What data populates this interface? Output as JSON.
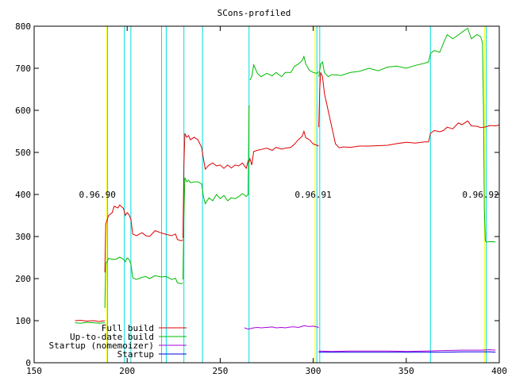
{
  "chart_data": {
    "type": "line",
    "title": "SCons-profiled",
    "xlim": [
      150,
      400
    ],
    "ylim": [
      0,
      800
    ],
    "x_ticks": [
      150,
      200,
      250,
      300,
      350,
      400
    ],
    "y_ticks": [
      0,
      100,
      200,
      300,
      400,
      500,
      600,
      700,
      800
    ],
    "grid": false,
    "legend_position": "bottom-left",
    "colors": {
      "release_marker": "#ffff00",
      "commit_marker": "#00dddd"
    },
    "version_labels": [
      {
        "text": "0.96.90",
        "x": 184,
        "y": 400
      },
      {
        "text": "0.96.91",
        "x": 300,
        "y": 400
      },
      {
        "text": "0.96.92",
        "x": 390,
        "y": 400
      }
    ],
    "release_markers_x": [
      189,
      301,
      392
    ],
    "commit_markers_x": [
      189.5,
      198.5,
      202,
      218.5,
      221,
      230.5,
      240.5,
      265.5,
      302,
      303.5,
      363,
      393
    ],
    "series": [
      {
        "name": "Full build",
        "color": "#dd0000",
        "segments": [
          [
            [
              172,
              100
            ],
            [
              175,
              101
            ],
            [
              178,
              99
            ],
            [
              182,
              100
            ],
            [
              185,
              98
            ],
            [
              188,
              100
            ]
          ],
          [
            [
              188,
              215
            ],
            [
              188.5,
              330
            ],
            [
              190,
              350
            ],
            [
              192,
              357
            ],
            [
              193,
              372
            ],
            [
              195,
              368
            ],
            [
              196,
              375
            ],
            [
              198,
              367
            ],
            [
              199,
              350
            ],
            [
              200,
              357
            ],
            [
              201,
              352
            ],
            [
              202,
              341
            ],
            [
              203,
              306
            ],
            [
              205,
              302
            ],
            [
              208,
              309
            ],
            [
              210,
              302
            ],
            [
              212,
              300
            ],
            [
              215,
              314
            ],
            [
              218,
              309
            ],
            [
              221,
              305
            ],
            [
              224,
              302
            ],
            [
              226,
              306
            ],
            [
              227,
              293
            ],
            [
              229,
              290
            ],
            [
              230,
              292
            ]
          ],
          [
            [
              230,
              296
            ],
            [
              230.5,
              470
            ],
            [
              231,
              545
            ],
            [
              232,
              536
            ],
            [
              233,
              540
            ],
            [
              234,
              530
            ],
            [
              236,
              536
            ],
            [
              238,
              530
            ],
            [
              240,
              512
            ],
            [
              241,
              485
            ],
            [
              242,
              460
            ],
            [
              244,
              470
            ],
            [
              246,
              475
            ],
            [
              248,
              468
            ],
            [
              250,
              470
            ],
            [
              252,
              462
            ],
            [
              254,
              470
            ],
            [
              256,
              463
            ],
            [
              258,
              470
            ],
            [
              260,
              468
            ],
            [
              262,
              475
            ],
            [
              264,
              462
            ],
            [
              265,
              480
            ],
            [
              265.5,
              478
            ],
            [
              266,
              485
            ],
            [
              267,
              470
            ],
            [
              268,
              502
            ],
            [
              270,
              505
            ],
            [
              272,
              507
            ],
            [
              275,
              510
            ],
            [
              278,
              505
            ],
            [
              280,
              512
            ],
            [
              283,
              508
            ],
            [
              285,
              510
            ],
            [
              288,
              512
            ],
            [
              290,
              520
            ],
            [
              292,
              530
            ],
            [
              294,
              538
            ],
            [
              295,
              550
            ],
            [
              296,
              535
            ],
            [
              298,
              530
            ],
            [
              300,
              520
            ],
            [
              302,
              517
            ],
            [
              303,
              515
            ]
          ],
          [
            [
              303,
              560
            ],
            [
              303.5,
              650
            ],
            [
              304,
              690
            ],
            [
              305,
              680
            ],
            [
              306,
              640
            ],
            [
              308,
              600
            ],
            [
              310,
              560
            ],
            [
              312,
              520
            ],
            [
              314,
              511
            ],
            [
              316,
              513
            ],
            [
              320,
              512
            ],
            [
              325,
              515
            ],
            [
              330,
              515
            ],
            [
              335,
              516
            ],
            [
              340,
              517
            ],
            [
              345,
              521
            ],
            [
              350,
              524
            ],
            [
              355,
              522
            ],
            [
              360,
              525
            ],
            [
              362,
              525
            ],
            [
              363,
              545
            ],
            [
              365,
              552
            ],
            [
              368,
              549
            ],
            [
              370,
              552
            ],
            [
              372,
              560
            ],
            [
              375,
              556
            ],
            [
              378,
              570
            ],
            [
              380,
              566
            ],
            [
              383,
              575
            ],
            [
              385,
              563
            ],
            [
              388,
              562
            ],
            [
              390,
              559
            ],
            [
              392,
              560
            ],
            [
              395,
              564
            ],
            [
              398,
              563
            ],
            [
              400,
              565
            ]
          ]
        ]
      },
      {
        "name": "Up-to-date build",
        "color": "#00bb00",
        "segments": [
          [
            [
              172,
              95
            ],
            [
              175,
              94
            ],
            [
              178,
              96
            ],
            [
              182,
              95
            ],
            [
              185,
              94
            ],
            [
              188,
              95
            ]
          ],
          [
            [
              188,
              130
            ],
            [
              188.5,
              235
            ],
            [
              190,
              248
            ],
            [
              192,
              246
            ],
            [
              194,
              246
            ],
            [
              196,
              251
            ],
            [
              198,
              246
            ],
            [
              199,
              240
            ],
            [
              200,
              249
            ],
            [
              201,
              246
            ],
            [
              202,
              235
            ],
            [
              203,
              202
            ],
            [
              205,
              198
            ],
            [
              208,
              203
            ],
            [
              210,
              205
            ],
            [
              212,
              200
            ],
            [
              215,
              207
            ],
            [
              218,
              204
            ],
            [
              221,
              205
            ],
            [
              224,
              198
            ],
            [
              226,
              201
            ],
            [
              227,
              190
            ],
            [
              229,
              188
            ],
            [
              230,
              190
            ]
          ],
          [
            [
              230,
              198
            ],
            [
              230.5,
              350
            ],
            [
              231,
              440
            ],
            [
              232,
              430
            ],
            [
              233,
              434
            ],
            [
              234,
              428
            ],
            [
              236,
              430
            ],
            [
              238,
              430
            ],
            [
              240,
              425
            ],
            [
              241,
              395
            ],
            [
              242,
              378
            ],
            [
              244,
              392
            ],
            [
              246,
              385
            ],
            [
              248,
              400
            ],
            [
              250,
              390
            ],
            [
              252,
              398
            ],
            [
              254,
              385
            ],
            [
              256,
              392
            ],
            [
              258,
              390
            ],
            [
              260,
              395
            ],
            [
              262,
              402
            ],
            [
              264,
              395
            ],
            [
              265,
              400
            ],
            [
              265.5,
              610
            ],
            [
              266,
              610
            ]
          ],
          [
            [
              266,
              672
            ],
            [
              267,
              680
            ],
            [
              268,
              708
            ],
            [
              270,
              688
            ],
            [
              272,
              680
            ],
            [
              275,
              688
            ],
            [
              278,
              682
            ],
            [
              280,
              690
            ],
            [
              283,
              680
            ],
            [
              285,
              690
            ],
            [
              288,
              690
            ],
            [
              290,
              705
            ],
            [
              292,
              710
            ],
            [
              294,
              718
            ],
            [
              295,
              728
            ],
            [
              296,
              710
            ],
            [
              298,
              695
            ],
            [
              300,
              690
            ],
            [
              302,
              688
            ],
            [
              303,
              692
            ]
          ],
          [
            [
              303,
              680
            ],
            [
              304,
              710
            ],
            [
              305,
              715
            ],
            [
              306,
              690
            ],
            [
              308,
              680
            ],
            [
              310,
              685
            ],
            [
              315,
              683
            ],
            [
              320,
              690
            ],
            [
              325,
              693
            ],
            [
              330,
              700
            ],
            [
              335,
              694
            ],
            [
              340,
              703
            ],
            [
              345,
              705
            ],
            [
              350,
              700
            ],
            [
              355,
              707
            ],
            [
              360,
              712
            ],
            [
              362,
              715
            ],
            [
              363,
              735
            ],
            [
              365,
              742
            ],
            [
              368,
              738
            ],
            [
              370,
              760
            ],
            [
              372,
              780
            ],
            [
              375,
              770
            ],
            [
              378,
              779
            ],
            [
              380,
              786
            ],
            [
              383,
              795
            ],
            [
              385,
              770
            ],
            [
              388,
              780
            ],
            [
              390,
              775
            ],
            [
              391,
              760
            ],
            [
              391.5,
              600
            ],
            [
              392,
              365
            ],
            [
              392.5,
              290
            ],
            [
              393,
              287
            ],
            [
              396,
              288
            ],
            [
              398,
              287
            ]
          ]
        ]
      },
      {
        "name": "Startup (nomemoizer)",
        "color": "#aa00dd",
        "segments": [
          [
            [
              263,
              83
            ],
            [
              265,
              80
            ],
            [
              268,
              83
            ],
            [
              270,
              84
            ],
            [
              272,
              83
            ],
            [
              275,
              84
            ],
            [
              278,
              85
            ],
            [
              280,
              83
            ],
            [
              283,
              84
            ],
            [
              285,
              83
            ],
            [
              288,
              85
            ],
            [
              290,
              85
            ],
            [
              292,
              84
            ],
            [
              295,
              88
            ],
            [
              298,
              86
            ],
            [
              300,
              87
            ],
            [
              302,
              85
            ],
            [
              303,
              84
            ]
          ],
          [
            [
              303,
              28
            ],
            [
              310,
              27
            ],
            [
              320,
              28
            ],
            [
              330,
              28
            ],
            [
              340,
              28
            ],
            [
              350,
              27
            ],
            [
              360,
              28
            ],
            [
              370,
              29
            ],
            [
              380,
              30
            ],
            [
              390,
              30
            ],
            [
              395,
              31
            ],
            [
              398,
              30
            ]
          ]
        ]
      },
      {
        "name": "Startup",
        "color": "#0000dd",
        "segments": [
          [
            [
              303,
              25
            ],
            [
              310,
              25
            ],
            [
              320,
              25
            ],
            [
              330,
              25
            ],
            [
              340,
              25
            ],
            [
              350,
              25
            ],
            [
              360,
              25
            ],
            [
              370,
              25
            ],
            [
              380,
              26
            ],
            [
              390,
              26
            ],
            [
              395,
              26
            ],
            [
              398,
              25
            ]
          ]
        ]
      }
    ]
  }
}
